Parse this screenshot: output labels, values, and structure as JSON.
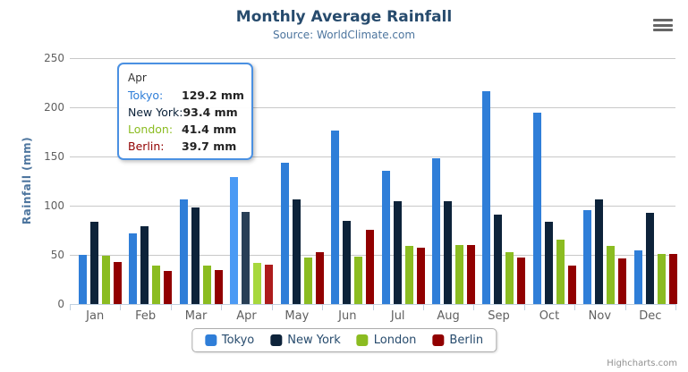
{
  "header": {
    "title": "Monthly Average Rainfall",
    "subtitle": "Source: WorldClimate.com"
  },
  "y_axis": {
    "title": "Rainfall (mm)",
    "tick_labels": [
      "0",
      "50",
      "100",
      "150",
      "200",
      "250"
    ]
  },
  "x_axis": {
    "labels": [
      "Jan",
      "Feb",
      "Mar",
      "Apr",
      "May",
      "Jun",
      "Jul",
      "Aug",
      "Sep",
      "Oct",
      "Nov",
      "Dec"
    ]
  },
  "chart_data": {
    "type": "bar",
    "title": "Monthly Average Rainfall",
    "subtitle": "Source: WorldClimate.com",
    "categories": [
      "Jan",
      "Feb",
      "Mar",
      "Apr",
      "May",
      "Jun",
      "Jul",
      "Aug",
      "Sep",
      "Oct",
      "Nov",
      "Dec"
    ],
    "series": [
      {
        "name": "Tokyo",
        "color": "#2f7ed8",
        "values": [
          49.9,
          71.5,
          106.4,
          129.2,
          144.0,
          176.0,
          135.6,
          148.5,
          216.4,
          194.1,
          95.6,
          54.4
        ]
      },
      {
        "name": "New York",
        "color": "#0d233a",
        "values": [
          83.6,
          78.8,
          98.5,
          93.4,
          106.0,
          84.5,
          105.0,
          104.3,
          91.2,
          83.5,
          106.6,
          92.3
        ]
      },
      {
        "name": "London",
        "color": "#8bbc21",
        "values": [
          48.9,
          38.8,
          39.3,
          41.4,
          47.0,
          48.3,
          59.0,
          59.6,
          52.4,
          65.2,
          59.3,
          51.2
        ]
      },
      {
        "name": "Berlin",
        "color": "#910000",
        "values": [
          42.4,
          33.2,
          34.5,
          39.7,
          52.6,
          75.5,
          57.4,
          60.4,
          47.6,
          39.1,
          46.8,
          51.1
        ]
      }
    ],
    "xlabel": "",
    "ylabel": "Rainfall (mm)",
    "ylim": [
      0,
      250
    ],
    "ytick_interval": 50,
    "grid": true,
    "legend_position": "bottom",
    "unit": "mm",
    "highlighted_category": "Apr"
  },
  "tooltip": {
    "header": "Apr",
    "rows": [
      {
        "series": "Tokyo",
        "label": "Tokyo:",
        "value": "129.2 mm"
      },
      {
        "series": "New York",
        "label": "New York:",
        "value": "93.4 mm"
      },
      {
        "series": "London",
        "label": "London:",
        "value": "41.4 mm"
      },
      {
        "series": "Berlin",
        "label": "Berlin:",
        "value": "39.7 mm"
      }
    ]
  },
  "legend": {
    "items": [
      {
        "label": "Tokyo",
        "color": "#2f7ed8"
      },
      {
        "label": "New York",
        "color": "#0d233a"
      },
      {
        "label": "London",
        "color": "#8bbc21"
      },
      {
        "label": "Berlin",
        "color": "#910000"
      }
    ]
  },
  "credits": {
    "label": "Highcharts.com"
  }
}
